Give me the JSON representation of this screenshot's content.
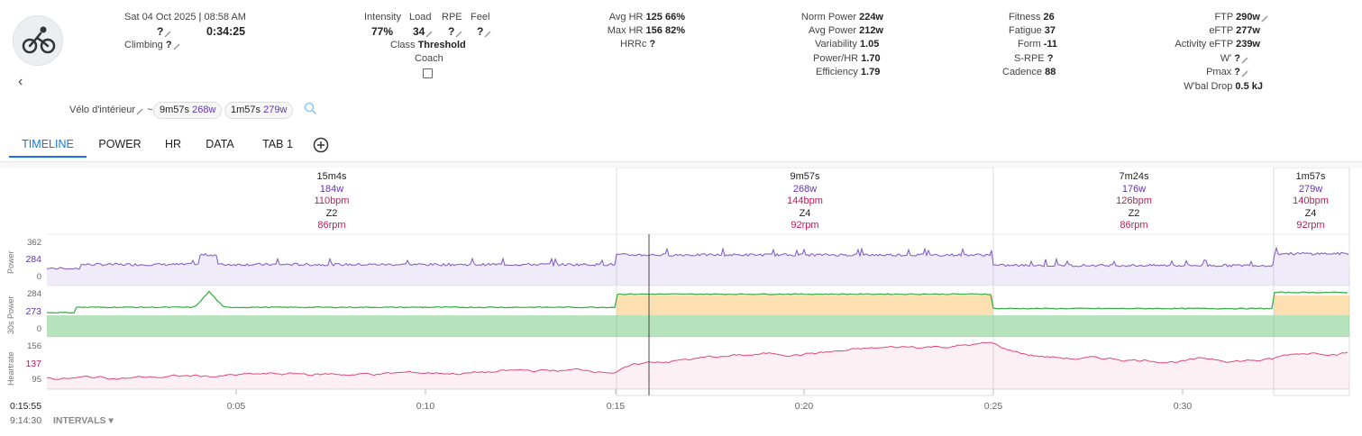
{
  "activity": {
    "date": "Sat 04 Oct 2025",
    "time": "08:58 AM",
    "name_value": "?",
    "duration": "0:34:25",
    "climbing_label": "Climbing",
    "climbing_value": "?"
  },
  "metrics_a": {
    "intensity_label": "Intensity",
    "intensity_value": "77%",
    "load_label": "Load",
    "load_value": "34",
    "rpe_label": "RPE",
    "rpe_value": "?",
    "feel_label": "Feel",
    "feel_value": "?",
    "class_label": "Class",
    "class_value": "Threshold",
    "coach_label": "Coach"
  },
  "metrics_hr": {
    "avg_hr_label": "Avg HR",
    "avg_hr_value": "125",
    "avg_hr_pct": "66%",
    "max_hr_label": "Max HR",
    "max_hr_value": "156",
    "max_hr_pct": "82%",
    "hrrc_label": "HRRc",
    "hrrc_value": "?"
  },
  "metrics_power": {
    "norm_label": "Norm Power",
    "norm_value": "224w",
    "avg_label": "Avg Power",
    "avg_value": "212w",
    "var_label": "Variability",
    "var_value": "1.05",
    "phr_label": "Power/HR",
    "phr_value": "1.70",
    "eff_label": "Efficiency",
    "eff_value": "1.79"
  },
  "metrics_fitness": {
    "fitness_label": "Fitness",
    "fitness_value": "26",
    "fatigue_label": "Fatigue",
    "fatigue_value": "37",
    "form_label": "Form",
    "form_value": "-11",
    "srpe_label": "S-RPE",
    "srpe_value": "?",
    "cadence_label": "Cadence",
    "cadence_value": "88"
  },
  "metrics_ftp": {
    "ftp_label": "FTP",
    "ftp_value": "290w",
    "eftp_label": "eFTP",
    "eftp_value": "277w",
    "aeftp_label": "Activity eFTP",
    "aeftp_value": "239w",
    "wprime_label": "W'",
    "wprime_value": "?",
    "pmax_label": "Pmax",
    "pmax_value": "?",
    "wbal_label": "W'bal Drop",
    "wbal_value": "0.5 kJ"
  },
  "gear": {
    "bike": "Vélo d'intérieur",
    "sep": "~",
    "chip1_time": "9m57s",
    "chip1_watts": "268w",
    "chip2_time": "1m57s",
    "chip2_watts": "279w"
  },
  "tabs": [
    "TIMELINE",
    "POWER",
    "HR",
    "DATA",
    "TAB 1"
  ],
  "segments": [
    {
      "dur": "15m4s",
      "watts": "184w",
      "bpm": "110bpm",
      "zone": "Z2",
      "rpm": "86rpm"
    },
    {
      "dur": "9m57s",
      "watts": "268w",
      "bpm": "144bpm",
      "zone": "Z4",
      "rpm": "92rpm"
    },
    {
      "dur": "7m24s",
      "watts": "176w",
      "bpm": "126bpm",
      "zone": "Z2",
      "rpm": "86rpm"
    },
    {
      "dur": "1m57s",
      "watts": "279w",
      "bpm": "140bpm",
      "zone": "Z4",
      "rpm": "92rpm"
    }
  ],
  "chart_data": {
    "type": "line",
    "x_unit": "minutes",
    "x_ticks": [
      "0:05",
      "0:10",
      "0:15",
      "0:20",
      "0:25",
      "0:30"
    ],
    "power": {
      "label": "Power",
      "ticks": [
        "362",
        "284",
        "0"
      ],
      "segments_w": [
        184,
        268,
        176,
        279
      ]
    },
    "power30s": {
      "label": "30s Power",
      "ticks": [
        "284",
        "273",
        "0"
      ]
    },
    "heartrate": {
      "label": "Heartrate",
      "ticks": [
        "156",
        "137",
        "95"
      ]
    },
    "cursor_time": "0:15:55",
    "colors": {
      "power": "#7e57c2",
      "hr": "#e0457b",
      "z2": "#2eab3e",
      "z4": "#f5a623"
    }
  },
  "footer": {
    "cursor_time": "0:15:55",
    "elapsed": "9:14:30",
    "intervals_label": "INTERVALS"
  }
}
